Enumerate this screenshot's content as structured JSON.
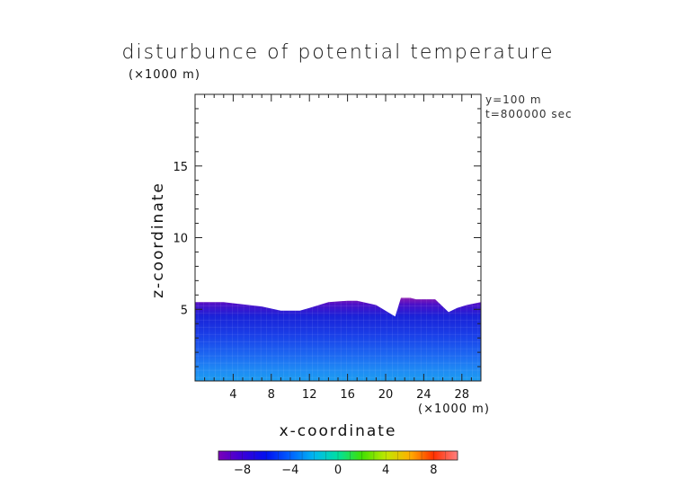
{
  "chart_data": {
    "type": "heatmap",
    "title": "disturbunce of potential temperature",
    "xlabel": "x-coordinate",
    "ylabel": "z-coordinate",
    "x_unit": "(×1000 m)",
    "y_unit": "(×1000 m)",
    "annotations": [
      "y=100 m",
      "t=800000 sec"
    ],
    "xlim": [
      0,
      30
    ],
    "ylim": [
      0,
      20
    ],
    "x_ticks": [
      "4",
      "8",
      "12",
      "16",
      "20",
      "24",
      "28"
    ],
    "y_ticks": [
      "5",
      "10",
      "15"
    ],
    "x_tick_values": [
      4,
      8,
      12,
      16,
      20,
      24,
      28
    ],
    "y_tick_values": [
      5,
      10,
      15
    ],
    "colorbar": {
      "range": [
        -10,
        10
      ],
      "tick_labels": [
        "−8",
        "−4",
        "0",
        "4",
        "8"
      ],
      "tick_values": [
        -8,
        -4,
        0,
        4,
        8
      ]
    },
    "field_top": {
      "x": [
        0,
        3,
        7,
        9,
        11,
        12,
        14,
        16,
        17,
        19,
        21,
        21.6,
        22.6,
        23.2,
        25.2,
        26.6,
        27.5,
        28.5,
        30
      ],
      "z": [
        5.5,
        5.5,
        5.2,
        4.9,
        4.9,
        5.1,
        5.5,
        5.6,
        5.6,
        5.3,
        4.5,
        5.8,
        5.8,
        5.7,
        5.7,
        4.8,
        5.1,
        5.3,
        5.5
      ]
    },
    "field_value_range": [
      -10,
      -5
    ]
  }
}
